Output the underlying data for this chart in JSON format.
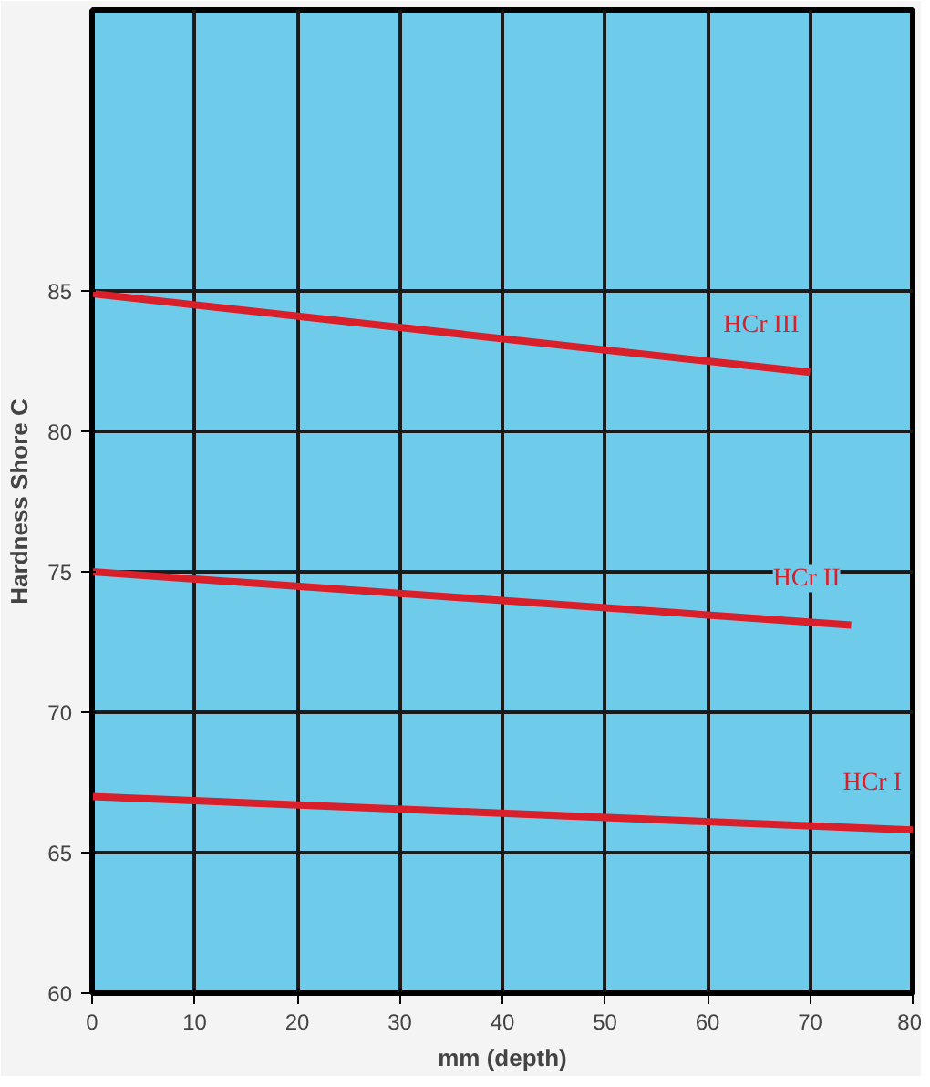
{
  "chart_data": {
    "type": "line",
    "xlabel": "mm (depth)",
    "ylabel": "Hardness Shore C",
    "xlim": [
      0,
      80
    ],
    "xticks": [
      0,
      10,
      20,
      30,
      40,
      50,
      60,
      70,
      80
    ],
    "ylim": [
      60,
      95
    ],
    "yticks": [
      60,
      65,
      70,
      75,
      80,
      85
    ],
    "grid": true,
    "marker": "none",
    "line_style": "solid",
    "series": [
      {
        "name": "HCr III",
        "color": "#d9202a",
        "x": [
          0,
          70
        ],
        "values": [
          84.9,
          82.1
        ]
      },
      {
        "name": "HCr II",
        "color": "#d9202a",
        "x": [
          0,
          74
        ],
        "values": [
          75.0,
          73.1
        ]
      },
      {
        "name": "HCr I",
        "color": "#d9202a",
        "x": [
          0,
          80
        ],
        "values": [
          67.0,
          65.8
        ]
      }
    ]
  }
}
